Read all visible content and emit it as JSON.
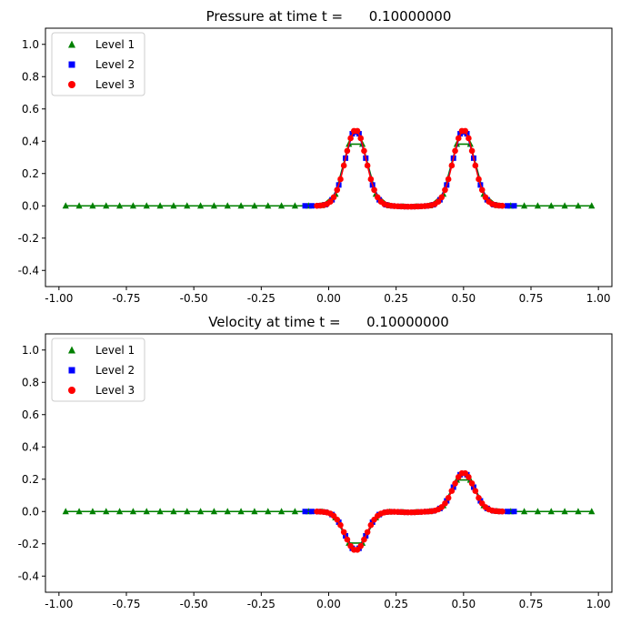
{
  "chart_data": [
    {
      "type": "scatter",
      "title": "Pressure at time t =      0.10000000",
      "xlabel": "",
      "ylabel": "",
      "xlim": [
        -1.05,
        1.05
      ],
      "ylim": [
        -0.5,
        1.1
      ],
      "xticks": [
        "-1.00",
        "-0.75",
        "-0.50",
        "-0.25",
        "0.00",
        "0.25",
        "0.50",
        "0.75",
        "1.00"
      ],
      "yticks": [
        "-0.4",
        "-0.2",
        "0.0",
        "0.2",
        "0.4",
        "0.6",
        "0.8",
        "1.0"
      ],
      "xtick_values": [
        -1.0,
        -0.75,
        -0.5,
        -0.25,
        0.0,
        0.25,
        0.5,
        0.75,
        1.0
      ],
      "ytick_values": [
        -0.4,
        -0.2,
        0.0,
        0.2,
        0.4,
        0.6,
        0.8,
        1.0
      ],
      "grid": false,
      "legend_position": "top-left",
      "profile": {
        "form": "two gaussian bumps",
        "centers": [
          0.1,
          0.5
        ],
        "amplitude": 0.47,
        "width": 0.055,
        "dip_center": 0.3,
        "dip_depth": 0.005
      },
      "series": [
        {
          "name": "Level 1",
          "marker": "triangle",
          "color": "#008000",
          "x_range": [
            -0.975,
            0.975
          ],
          "step": 0.05
        },
        {
          "name": "Level 2",
          "marker": "square",
          "color": "#0000ff",
          "x_range": [
            -0.0875,
            0.6875
          ],
          "step": 0.025
        },
        {
          "name": "Level 3",
          "marker": "circle",
          "color": "#ff0000",
          "x_range": [
            -0.04375,
            0.64375
          ],
          "step": 0.0125
        }
      ]
    },
    {
      "type": "scatter",
      "title": "Velocity at time t =      0.10000000",
      "xlabel": "",
      "ylabel": "",
      "xlim": [
        -1.05,
        1.05
      ],
      "ylim": [
        -0.5,
        1.1
      ],
      "xticks": [
        "-1.00",
        "-0.75",
        "-0.50",
        "-0.25",
        "0.00",
        "0.25",
        "0.50",
        "0.75",
        "1.00"
      ],
      "yticks": [
        "-0.4",
        "-0.2",
        "0.0",
        "0.2",
        "0.4",
        "0.6",
        "0.8",
        "1.0"
      ],
      "xtick_values": [
        -1.0,
        -0.75,
        -0.5,
        -0.25,
        0.0,
        0.25,
        0.5,
        0.75,
        1.0
      ],
      "ytick_values": [
        -0.4,
        -0.2,
        0.0,
        0.2,
        0.4,
        0.6,
        0.8,
        1.0
      ],
      "grid": false,
      "legend_position": "top-left",
      "profile": {
        "form": "negative bump then positive bump",
        "centers": [
          0.1,
          0.5
        ],
        "amplitudes": [
          -0.24,
          0.24
        ],
        "width": 0.055,
        "shelf_center": 0.3,
        "shelf_level": -0.005
      },
      "series": [
        {
          "name": "Level 1",
          "marker": "triangle",
          "color": "#008000",
          "x_range": [
            -0.975,
            0.975
          ],
          "step": 0.05
        },
        {
          "name": "Level 2",
          "marker": "square",
          "color": "#0000ff",
          "x_range": [
            -0.0875,
            0.6875
          ],
          "step": 0.025
        },
        {
          "name": "Level 3",
          "marker": "circle",
          "color": "#ff0000",
          "x_range": [
            -0.04375,
            0.64375
          ],
          "step": 0.0125
        }
      ]
    }
  ]
}
